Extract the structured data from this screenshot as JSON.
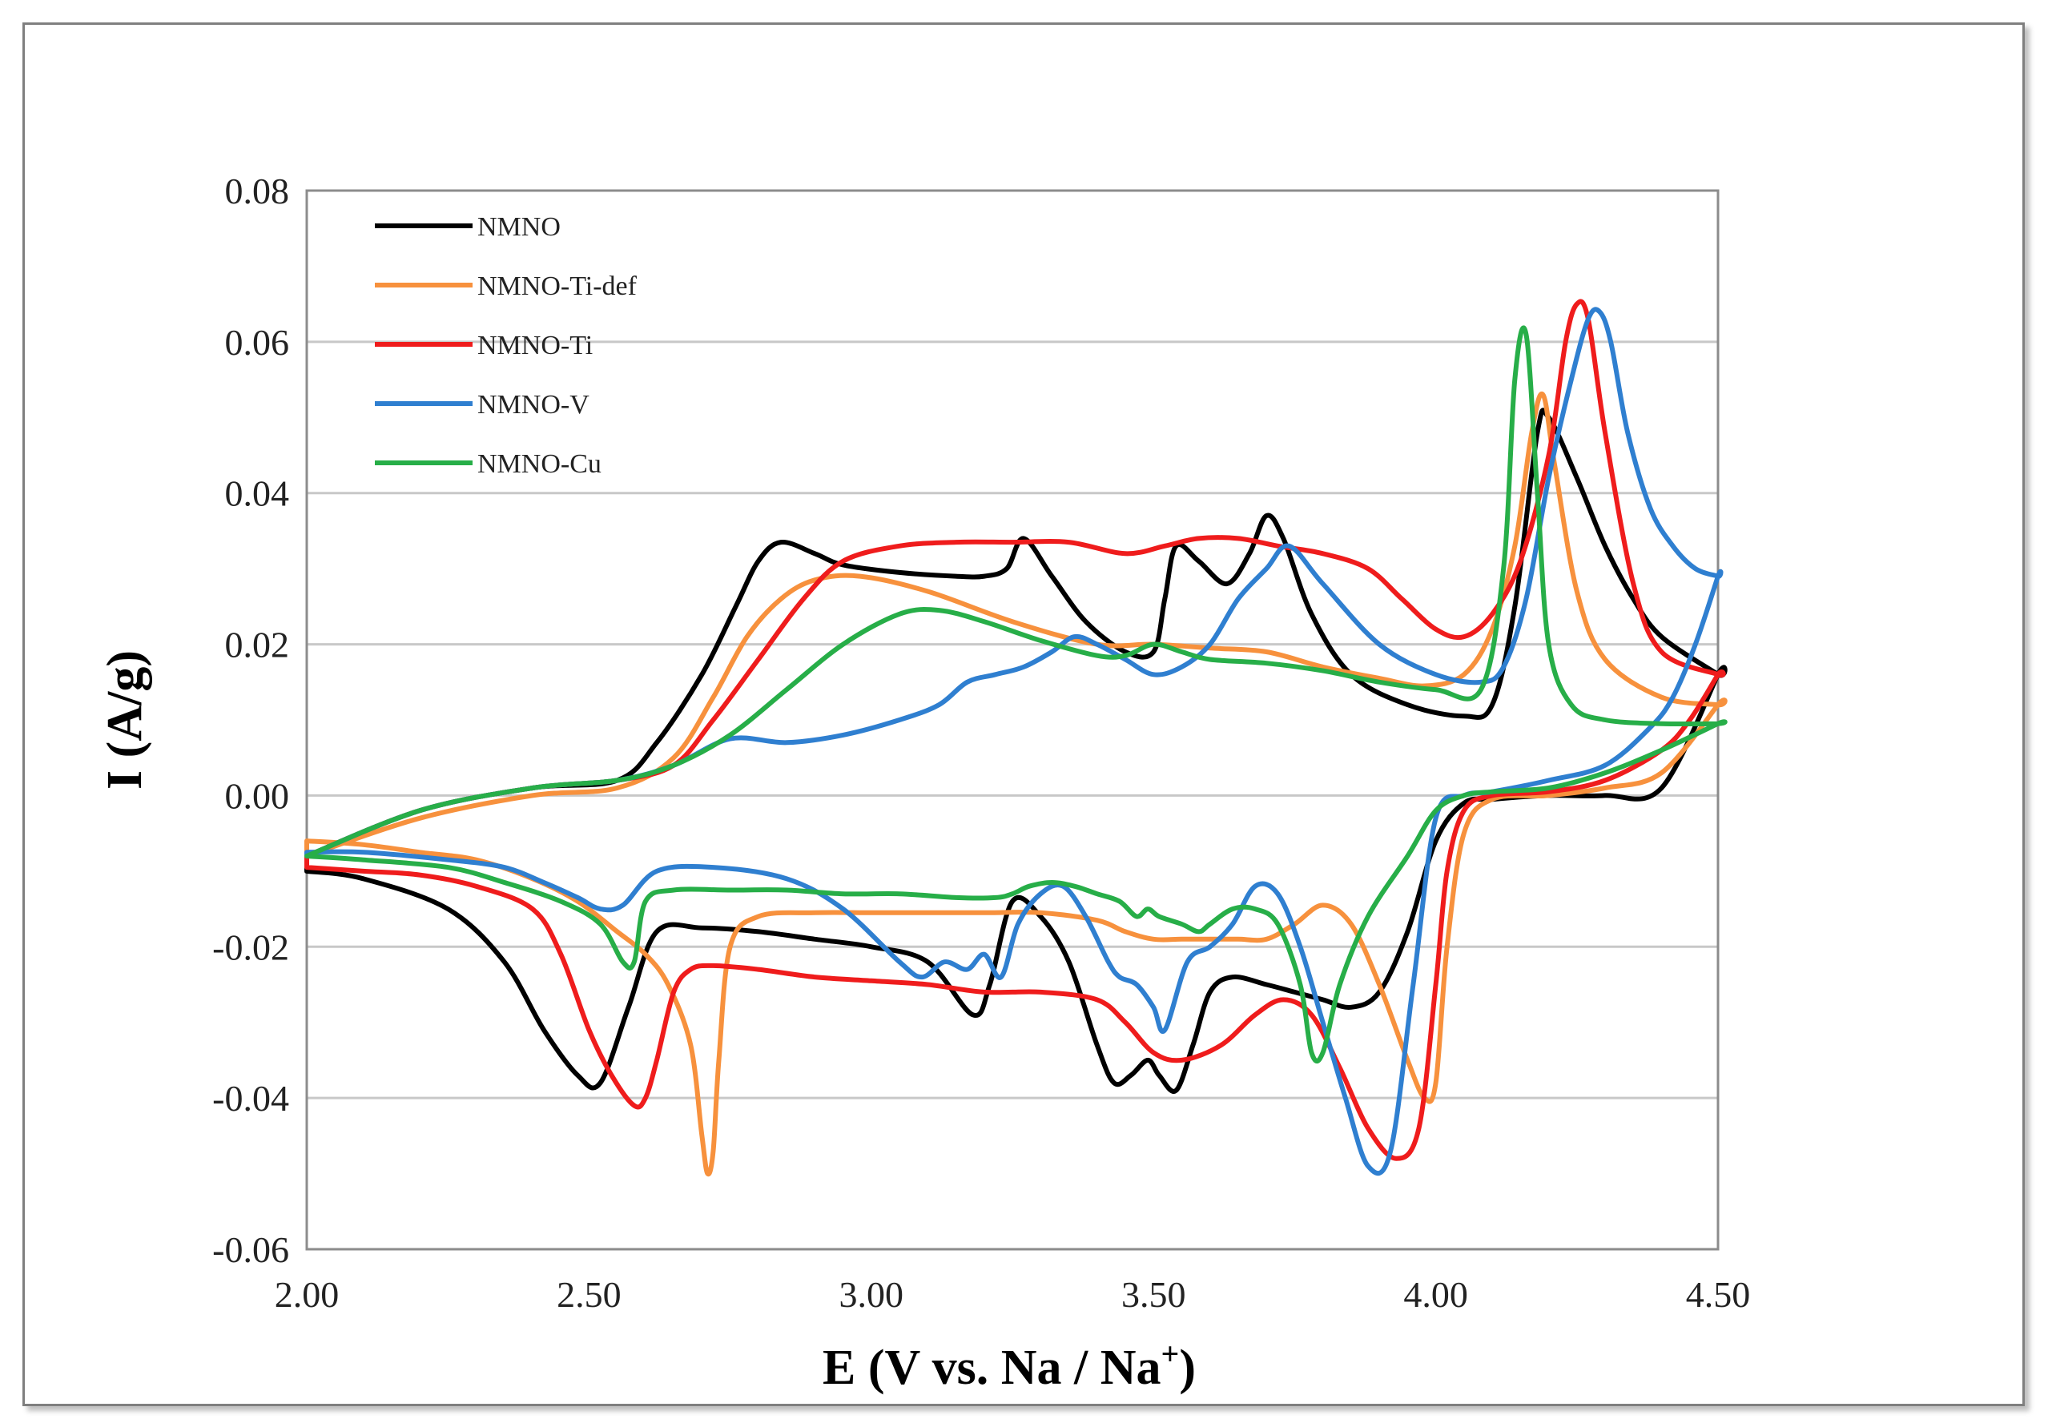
{
  "chart_data": {
    "type": "line",
    "title": "",
    "xlabel": "E (V vs. Na / Na",
    "xlabel_sup": "+",
    "xlabel_end": ")",
    "ylabel": "I (A/g)",
    "xlim": [
      2.0,
      4.5
    ],
    "ylim": [
      -0.06,
      0.08
    ],
    "x_ticks": [
      2.0,
      2.5,
      3.0,
      3.5,
      4.0,
      4.5
    ],
    "x_tick_labels": [
      "2.00",
      "2.50",
      "3.00",
      "3.50",
      "4.00",
      "4.50"
    ],
    "y_ticks": [
      -0.06,
      -0.04,
      -0.02,
      0.0,
      0.02,
      0.04,
      0.06,
      0.08
    ],
    "y_tick_labels": [
      "-0.06",
      "-0.04",
      "-0.02",
      "0.00",
      "0.02",
      "0.04",
      "0.06",
      "0.08"
    ],
    "grid": "horizontal",
    "legend_position": "top-left",
    "series": [
      {
        "name": "NMNO",
        "color": "#000000",
        "x": [
          2.0,
          2.2,
          2.4,
          2.55,
          2.62,
          2.7,
          2.76,
          2.8,
          2.84,
          2.9,
          2.95,
          3.05,
          3.15,
          3.2,
          3.24,
          3.27,
          3.32,
          3.38,
          3.45,
          3.5,
          3.52,
          3.54,
          3.58,
          3.63,
          3.67,
          3.7,
          3.73,
          3.78,
          3.85,
          3.95,
          4.05,
          4.1,
          4.14,
          4.18,
          4.2,
          4.25,
          4.3,
          4.35,
          4.4,
          4.5,
          4.5,
          4.4,
          4.3,
          4.2,
          4.1,
          4.05,
          4.0,
          3.95,
          3.9,
          3.85,
          3.8,
          3.75,
          3.7,
          3.64,
          3.6,
          3.57,
          3.54,
          3.51,
          3.49,
          3.46,
          3.43,
          3.4,
          3.35,
          3.3,
          3.25,
          3.21,
          3.18,
          3.1,
          3.0,
          2.9,
          2.8,
          2.7,
          2.62,
          2.57,
          2.52,
          2.48,
          2.42,
          2.35,
          2.25,
          2.1,
          2.0
        ],
        "y": [
          -0.008,
          -0.002,
          0.001,
          0.002,
          0.007,
          0.016,
          0.025,
          0.031,
          0.0335,
          0.032,
          0.0305,
          0.0295,
          0.029,
          0.029,
          0.03,
          0.034,
          0.029,
          0.023,
          0.019,
          0.019,
          0.026,
          0.033,
          0.031,
          0.028,
          0.032,
          0.037,
          0.034,
          0.024,
          0.016,
          0.012,
          0.0105,
          0.012,
          0.025,
          0.048,
          0.05,
          0.042,
          0.033,
          0.026,
          0.021,
          0.016,
          0.016,
          0.001,
          0.0,
          0.0,
          -0.0005,
          -0.001,
          -0.006,
          -0.018,
          -0.026,
          -0.028,
          -0.027,
          -0.026,
          -0.025,
          -0.024,
          -0.026,
          -0.033,
          -0.039,
          -0.037,
          -0.035,
          -0.037,
          -0.038,
          -0.033,
          -0.022,
          -0.016,
          -0.014,
          -0.025,
          -0.029,
          -0.022,
          -0.02,
          -0.019,
          -0.018,
          -0.0175,
          -0.018,
          -0.028,
          -0.038,
          -0.037,
          -0.031,
          -0.022,
          -0.015,
          -0.011,
          -0.01
        ]
      },
      {
        "name": "NMNO-Ti-def",
        "color": "#f7913d",
        "x": [
          2.0,
          2.2,
          2.4,
          2.55,
          2.65,
          2.72,
          2.78,
          2.84,
          2.9,
          2.98,
          3.1,
          3.25,
          3.4,
          3.5,
          3.6,
          3.7,
          3.8,
          3.9,
          3.98,
          4.05,
          4.1,
          4.14,
          4.17,
          4.19,
          4.21,
          4.25,
          4.3,
          4.4,
          4.5,
          4.5,
          4.4,
          4.3,
          4.2,
          4.1,
          4.05,
          4.02,
          4.0,
          3.98,
          3.95,
          3.9,
          3.85,
          3.8,
          3.75,
          3.7,
          3.65,
          3.6,
          3.55,
          3.5,
          3.45,
          3.4,
          3.3,
          3.2,
          3.1,
          3.0,
          2.9,
          2.8,
          2.75,
          2.73,
          2.72,
          2.71,
          2.7,
          2.68,
          2.64,
          2.6,
          2.55,
          2.48,
          2.4,
          2.3,
          2.2,
          2.1,
          2.0
        ],
        "y": [
          -0.008,
          -0.003,
          0.0,
          0.001,
          0.005,
          0.013,
          0.021,
          0.026,
          0.0285,
          0.029,
          0.027,
          0.023,
          0.02,
          0.02,
          0.0195,
          0.019,
          0.017,
          0.0155,
          0.0145,
          0.016,
          0.022,
          0.033,
          0.048,
          0.053,
          0.044,
          0.027,
          0.018,
          0.013,
          0.012,
          0.012,
          0.003,
          0.001,
          0.0,
          -0.0005,
          -0.005,
          -0.02,
          -0.038,
          -0.04,
          -0.035,
          -0.025,
          -0.017,
          -0.0145,
          -0.017,
          -0.019,
          -0.019,
          -0.019,
          -0.019,
          -0.019,
          -0.018,
          -0.0165,
          -0.0155,
          -0.0155,
          -0.0155,
          -0.0155,
          -0.0155,
          -0.016,
          -0.02,
          -0.035,
          -0.047,
          -0.05,
          -0.045,
          -0.033,
          -0.025,
          -0.021,
          -0.018,
          -0.014,
          -0.011,
          -0.0085,
          -0.0075,
          -0.0065,
          -0.006
        ]
      },
      {
        "name": "NMNO-Ti",
        "color": "#ef1c1c",
        "x": [
          2.0,
          2.2,
          2.4,
          2.55,
          2.65,
          2.72,
          2.8,
          2.88,
          2.95,
          3.05,
          3.15,
          3.25,
          3.35,
          3.45,
          3.52,
          3.58,
          3.65,
          3.72,
          3.8,
          3.88,
          3.94,
          4.0,
          4.05,
          4.1,
          4.15,
          4.2,
          4.23,
          4.25,
          4.27,
          4.3,
          4.35,
          4.4,
          4.5,
          4.5,
          4.45,
          4.4,
          4.3,
          4.2,
          4.1,
          4.05,
          4.02,
          4.0,
          3.97,
          3.93,
          3.88,
          3.83,
          3.78,
          3.73,
          3.68,
          3.62,
          3.55,
          3.5,
          3.45,
          3.4,
          3.3,
          3.2,
          3.1,
          3.0,
          2.9,
          2.8,
          2.72,
          2.68,
          2.65,
          2.62,
          2.6,
          2.58,
          2.54,
          2.5,
          2.45,
          2.4,
          2.3,
          2.2,
          2.1,
          2.0
        ],
        "y": [
          -0.008,
          -0.002,
          0.001,
          0.002,
          0.004,
          0.01,
          0.018,
          0.026,
          0.031,
          0.033,
          0.0335,
          0.0335,
          0.0335,
          0.032,
          0.033,
          0.034,
          0.034,
          0.033,
          0.032,
          0.03,
          0.026,
          0.022,
          0.021,
          0.024,
          0.031,
          0.045,
          0.06,
          0.065,
          0.063,
          0.048,
          0.028,
          0.019,
          0.016,
          0.016,
          0.01,
          0.006,
          0.002,
          0.0005,
          0.0,
          -0.002,
          -0.01,
          -0.025,
          -0.044,
          -0.048,
          -0.044,
          -0.036,
          -0.029,
          -0.027,
          -0.029,
          -0.033,
          -0.035,
          -0.034,
          -0.03,
          -0.027,
          -0.026,
          -0.026,
          -0.025,
          -0.0245,
          -0.024,
          -0.023,
          -0.0225,
          -0.023,
          -0.026,
          -0.035,
          -0.04,
          -0.041,
          -0.037,
          -0.031,
          -0.021,
          -0.015,
          -0.012,
          -0.0105,
          -0.01,
          -0.0095
        ]
      },
      {
        "name": "NMNO-V",
        "color": "#2f7fd0",
        "x": [
          2.0,
          2.2,
          2.4,
          2.55,
          2.65,
          2.75,
          2.85,
          2.95,
          3.05,
          3.12,
          3.17,
          3.22,
          3.27,
          3.32,
          3.36,
          3.4,
          3.45,
          3.5,
          3.55,
          3.6,
          3.65,
          3.7,
          3.74,
          3.8,
          3.9,
          4.0,
          4.08,
          4.12,
          4.16,
          4.2,
          4.24,
          4.27,
          4.29,
          4.31,
          4.34,
          4.38,
          4.42,
          4.46,
          4.5,
          4.5,
          4.46,
          4.42,
          4.38,
          4.3,
          4.2,
          4.1,
          4.05,
          4.0,
          3.96,
          3.92,
          3.88,
          3.84,
          3.8,
          3.76,
          3.72,
          3.68,
          3.64,
          3.6,
          3.56,
          3.52,
          3.5,
          3.47,
          3.44,
          3.42,
          3.38,
          3.34,
          3.3,
          3.26,
          3.23,
          3.2,
          3.17,
          3.13,
          3.09,
          3.05,
          2.95,
          2.85,
          2.72,
          2.62,
          2.56,
          2.52,
          2.48,
          2.42,
          2.35,
          2.25,
          2.1,
          2.0
        ],
        "y": [
          -0.008,
          -0.002,
          0.001,
          0.002,
          0.004,
          0.0075,
          0.007,
          0.008,
          0.01,
          0.012,
          0.015,
          0.016,
          0.017,
          0.019,
          0.021,
          0.02,
          0.018,
          0.016,
          0.017,
          0.02,
          0.026,
          0.03,
          0.033,
          0.028,
          0.02,
          0.016,
          0.015,
          0.017,
          0.026,
          0.042,
          0.055,
          0.063,
          0.064,
          0.06,
          0.048,
          0.038,
          0.033,
          0.03,
          0.029,
          0.029,
          0.02,
          0.013,
          0.009,
          0.004,
          0.002,
          0.0005,
          0.0,
          -0.003,
          -0.025,
          -0.047,
          -0.049,
          -0.04,
          -0.03,
          -0.02,
          -0.013,
          -0.012,
          -0.017,
          -0.02,
          -0.022,
          -0.031,
          -0.028,
          -0.025,
          -0.024,
          -0.022,
          -0.016,
          -0.012,
          -0.013,
          -0.017,
          -0.024,
          -0.021,
          -0.023,
          -0.022,
          -0.024,
          -0.022,
          -0.015,
          -0.011,
          -0.0095,
          -0.01,
          -0.0145,
          -0.015,
          -0.0135,
          -0.0115,
          -0.0095,
          -0.0085,
          -0.0075,
          -0.0075
        ]
      },
      {
        "name": "NMNO-Cu",
        "color": "#27ae48",
        "x": [
          2.0,
          2.2,
          2.4,
          2.55,
          2.65,
          2.75,
          2.85,
          2.95,
          3.05,
          3.12,
          3.2,
          3.3,
          3.4,
          3.45,
          3.5,
          3.55,
          3.6,
          3.7,
          3.8,
          3.9,
          4.0,
          4.08,
          4.12,
          4.14,
          4.16,
          4.18,
          4.2,
          4.24,
          4.3,
          4.4,
          4.5,
          4.5,
          4.4,
          4.3,
          4.2,
          4.1,
          4.05,
          4.0,
          3.95,
          3.88,
          3.83,
          3.8,
          3.78,
          3.76,
          3.72,
          3.68,
          3.64,
          3.6,
          3.58,
          3.55,
          3.51,
          3.49,
          3.47,
          3.44,
          3.4,
          3.36,
          3.32,
          3.28,
          3.25,
          3.22,
          3.15,
          3.05,
          2.95,
          2.85,
          2.75,
          2.65,
          2.6,
          2.58,
          2.56,
          2.52,
          2.45,
          2.35,
          2.25,
          2.1,
          2.0
        ],
        "y": [
          -0.008,
          -0.002,
          0.001,
          0.002,
          0.004,
          0.008,
          0.014,
          0.02,
          0.024,
          0.0245,
          0.023,
          0.0205,
          0.0185,
          0.0185,
          0.02,
          0.019,
          0.018,
          0.0175,
          0.0165,
          0.015,
          0.014,
          0.014,
          0.03,
          0.055,
          0.061,
          0.04,
          0.02,
          0.012,
          0.01,
          0.0095,
          0.0095,
          0.0095,
          0.006,
          0.003,
          0.001,
          0.0005,
          0.0,
          -0.002,
          -0.008,
          -0.016,
          -0.025,
          -0.034,
          -0.034,
          -0.025,
          -0.017,
          -0.015,
          -0.015,
          -0.017,
          -0.018,
          -0.017,
          -0.016,
          -0.015,
          -0.016,
          -0.014,
          -0.013,
          -0.012,
          -0.0115,
          -0.012,
          -0.013,
          -0.0135,
          -0.0135,
          -0.013,
          -0.013,
          -0.0125,
          -0.0125,
          -0.0125,
          -0.014,
          -0.022,
          -0.022,
          -0.017,
          -0.014,
          -0.0115,
          -0.0095,
          -0.0085,
          -0.008
        ]
      }
    ]
  }
}
